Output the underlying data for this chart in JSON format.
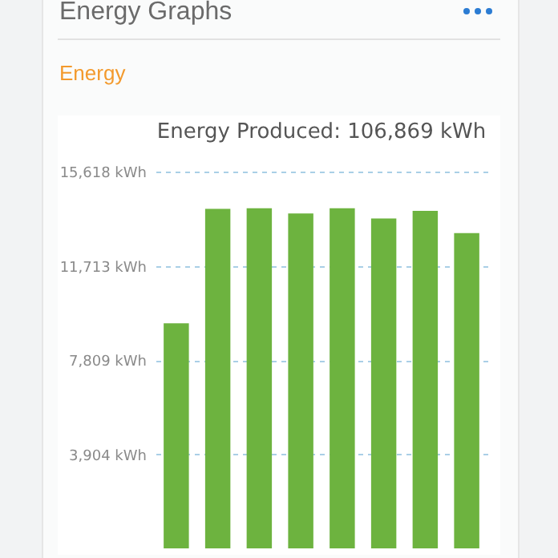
{
  "chart_data": {
    "type": "bar",
    "title": "Energy Produced: 106,869 kWh",
    "annotations": [
      "Energy Graphs",
      "Energy"
    ],
    "categories": [
      null,
      null,
      null,
      null,
      null,
      null,
      null,
      null
    ],
    "values": [
      9330,
      14070,
      14100,
      13880,
      14100,
      13670,
      13990,
      13070
    ],
    "color": "#6db33f",
    "ylim": [
      0,
      15618
    ],
    "yticks": [
      {
        "value": 3904,
        "label": "3,904 kWh"
      },
      {
        "value": 7809,
        "label": "7,809 kWh"
      },
      {
        "value": 11713,
        "label": "11,713 kWh"
      },
      {
        "value": 15618,
        "label": "15,618 kWh"
      }
    ],
    "grid": "y",
    "tick_labels": "y"
  }
}
